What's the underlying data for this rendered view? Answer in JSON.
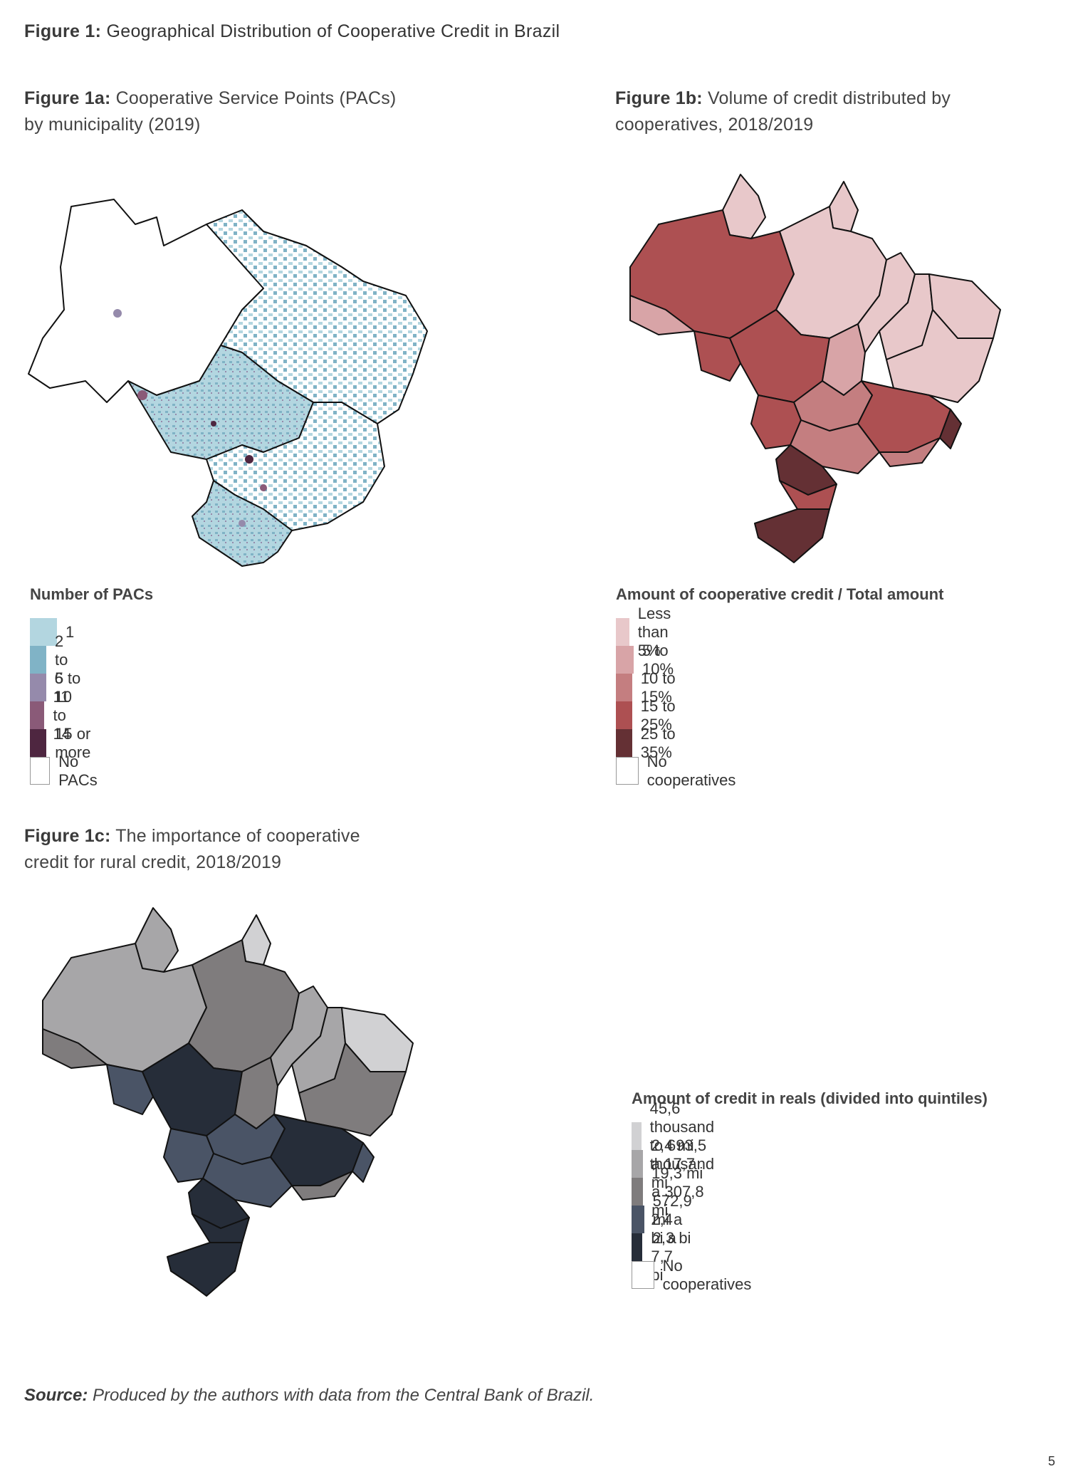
{
  "figure_title": {
    "label": "Figure 1:",
    "text": "Geographical Distribution of Cooperative Credit in Brazil"
  },
  "panels": [
    {
      "id": "1a",
      "label": "Figure 1a:",
      "caption_line1": "Cooperative Service Points (PACs)",
      "caption_line2": "by municipality (2019)",
      "legend": {
        "title": "Number of PACs",
        "items": [
          {
            "label": "1",
            "color": "#b3d6e0"
          },
          {
            "label": "2 to 5",
            "color": "#80b3c6"
          },
          {
            "label": "6 to 10",
            "color": "#958aab"
          },
          {
            "label": "11 to 14",
            "color": "#8a5a78"
          },
          {
            "label": "15 or more",
            "color": "#4e2640"
          },
          {
            "label": "No PACs",
            "color": "#ffffff"
          }
        ]
      }
    },
    {
      "id": "1b",
      "label": "Figure 1b:",
      "caption_line1": "Volume of credit distributed by",
      "caption_line2": "cooperatives, 2018/2019",
      "legend": {
        "title": "Amount of cooperative credit / Total amount",
        "items": [
          {
            "label": "Less than 5%",
            "color": "#e8c8ca"
          },
          {
            "label": "5 to 10%",
            "color": "#d8a4a7"
          },
          {
            "label": "10 to 15%",
            "color": "#c47e80"
          },
          {
            "label": "15 to 25%",
            "color": "#ad5052"
          },
          {
            "label": "25 to 35%",
            "color": "#643034"
          },
          {
            "label": "No cooperatives",
            "color": "#ffffff"
          }
        ]
      }
    },
    {
      "id": "1c",
      "label": "Figure 1c:",
      "caption_line1": "The importance of cooperative",
      "caption_line2": "credit for rural credit, 2018/2019",
      "legend": {
        "title": "Amount of credit in reals (divided into quintiles)",
        "items": [
          {
            "label": "45,6 thousand to 693,5 thousand",
            "color": "#d1d1d3"
          },
          {
            "label": "2,4 mi a 17,7 mi",
            "color": "#a7a6a8"
          },
          {
            "label": "19,3 mi a 307,8 mi",
            "color": "#7f7c7d"
          },
          {
            "label": "572,9 mi a 2,3 bi",
            "color": "#4a5466"
          },
          {
            "label": "2,4 bi a 7,7 bi",
            "color": "#262d39"
          },
          {
            "label": "No cooperatives",
            "color": "#ffffff"
          }
        ]
      }
    }
  ],
  "regions_1b": {
    "RR": "#e8c8ca",
    "AP": "#e8c8ca",
    "AM": "#ad5052",
    "PA": "#e8c8ca",
    "AC": "#d8a4a7",
    "RO": "#ad5052",
    "MT": "#ad5052",
    "TO": "#d8a4a7",
    "MA": "#e8c8ca",
    "PI": "#e8c8ca",
    "NE": "#e8c8ca",
    "BA": "#e8c8ca",
    "GO": "#c47e80",
    "MS": "#ad5052",
    "MG": "#ad5052",
    "ES": "#643034",
    "SP": "#c47e80",
    "RJ": "#c47e80",
    "PR": "#643034",
    "SC": "#ad5052",
    "RS": "#643034"
  },
  "regions_1c": {
    "RR": "#a7a6a8",
    "AP": "#d1d1d3",
    "AM": "#a7a6a8",
    "PA": "#7f7c7d",
    "AC": "#7f7c7d",
    "RO": "#4a5466",
    "MT": "#262d39",
    "TO": "#7f7c7d",
    "MA": "#a7a6a8",
    "PI": "#a7a6a8",
    "NE": "#d1d1d3",
    "BA": "#7f7c7d",
    "GO": "#4a5466",
    "MS": "#4a5466",
    "MG": "#262d39",
    "ES": "#4a5466",
    "SP": "#4a5466",
    "RJ": "#7f7c7d",
    "PR": "#262d39",
    "SC": "#262d39",
    "RS": "#262d39"
  },
  "source": {
    "label": "Source:",
    "text": "Produced by the authors with data from the Central Bank of Brazil."
  },
  "page_number": "5"
}
